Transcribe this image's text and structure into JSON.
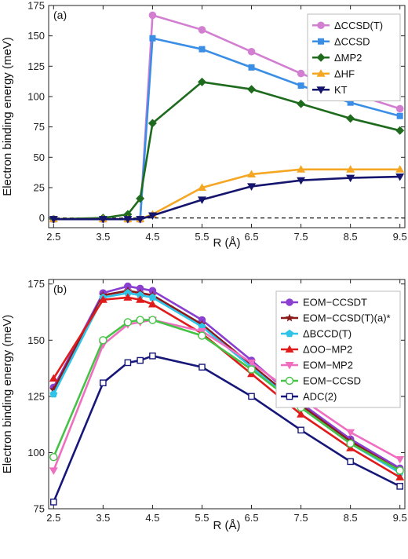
{
  "chart_data": [
    {
      "type": "line",
      "panel_label": "(a)",
      "xlabel": "R (Å)",
      "ylabel": "Electron binding energy (meV)",
      "xlim": [
        2.4,
        9.6
      ],
      "ylim": [
        -8,
        175
      ],
      "xticks": [
        2.5,
        3.5,
        4.5,
        5.5,
        6.5,
        7.5,
        8.5,
        9.5
      ],
      "yticks": [
        0,
        25,
        50,
        75,
        100,
        125,
        150,
        175
      ],
      "xtick_labels": [
        "2.5",
        "3.5",
        "4.5",
        "5.5",
        "6.5",
        "7.5",
        "8.5",
        "9.5"
      ],
      "ytick_labels": [
        "0",
        "25",
        "50",
        "75",
        "100",
        "125",
        "150",
        "175"
      ],
      "reference_line": {
        "y": 0,
        "style": "dashed"
      },
      "legend_position": "top-right",
      "series": [
        {
          "name": "ΔCCSD(T)",
          "color": "#d27fd2",
          "marker": "circle",
          "x": [
            2.5,
            3.5,
            4.0,
            4.25,
            4.5,
            5.5,
            6.5,
            7.5,
            8.5,
            9.5
          ],
          "y": [
            -1,
            -1,
            -1,
            -1,
            167,
            155,
            137,
            119,
            103,
            90
          ]
        },
        {
          "name": "ΔCCSD",
          "color": "#3a8ee6",
          "marker": "square",
          "x": [
            2.5,
            3.5,
            4.0,
            4.25,
            4.5,
            5.5,
            6.5,
            7.5,
            8.5,
            9.5
          ],
          "y": [
            -1,
            -1,
            -1,
            -1,
            148,
            139,
            124,
            109,
            95,
            84
          ]
        },
        {
          "name": "ΔMP2",
          "color": "#1e6b1e",
          "marker": "diamond",
          "x": [
            2.5,
            3.5,
            4.0,
            4.25,
            4.5,
            5.5,
            6.5,
            7.5,
            8.5,
            9.5
          ],
          "y": [
            -1,
            0,
            3,
            16,
            78,
            112,
            106,
            94,
            82,
            72
          ]
        },
        {
          "name": "ΔHF",
          "color": "#f5a623",
          "marker": "triangle-up",
          "x": [
            2.5,
            3.5,
            4.0,
            4.25,
            4.5,
            5.5,
            6.5,
            7.5,
            8.5,
            9.5
          ],
          "y": [
            -1,
            -1,
            -1,
            -1,
            3,
            25,
            36,
            40,
            40,
            40
          ]
        },
        {
          "name": "KT",
          "color": "#15156e",
          "marker": "triangle-down",
          "x": [
            2.5,
            3.5,
            4.0,
            4.25,
            4.5,
            5.5,
            6.5,
            7.5,
            8.5,
            9.5
          ],
          "y": [
            -1,
            -1,
            -1,
            -1,
            2,
            15,
            26,
            31,
            33,
            34
          ]
        }
      ]
    },
    {
      "type": "line",
      "panel_label": "(b)",
      "xlabel": "R (Å)",
      "ylabel": "Electron binding energy (meV)",
      "xlim": [
        2.4,
        9.6
      ],
      "ylim": [
        75,
        177
      ],
      "xticks": [
        2.5,
        3.5,
        4.5,
        5.5,
        6.5,
        7.5,
        8.5,
        9.5
      ],
      "yticks": [
        75,
        100,
        125,
        150,
        175
      ],
      "xtick_labels": [
        "2.5",
        "3.5",
        "4.5",
        "5.5",
        "6.5",
        "7.5",
        "8.5",
        "9.5"
      ],
      "ytick_labels": [
        "75",
        "100",
        "125",
        "150",
        "175"
      ],
      "legend_position": "top-right",
      "series": [
        {
          "name": "EOM−CCSDT",
          "color": "#8a3fd1",
          "marker": "circle",
          "x": [
            2.5,
            3.5,
            4.0,
            4.25,
            4.5,
            5.5,
            6.5,
            7.5,
            8.5,
            9.5
          ],
          "y": [
            129,
            171,
            174,
            173,
            172,
            159,
            141,
            122,
            106,
            93
          ]
        },
        {
          "name": "EOM−CCSD(T)(a)*",
          "color": "#8b1a1a",
          "marker": "star",
          "x": [
            2.5,
            3.5,
            4.0,
            4.25,
            4.5,
            5.5,
            6.5,
            7.5,
            8.5,
            9.5
          ],
          "y": [
            128,
            170,
            172,
            171,
            170,
            157,
            139,
            121,
            105,
            92
          ]
        },
        {
          "name": "ΔBCCD(T)",
          "color": "#2fc3e8",
          "marker": "pentagon",
          "x": [
            2.5,
            3.5,
            4.0,
            4.25,
            4.5,
            5.5,
            6.5,
            7.5,
            8.5,
            9.5
          ],
          "y": [
            126,
            169,
            171,
            170,
            169,
            156,
            138,
            120,
            104,
            91
          ]
        },
        {
          "name": "ΔOO−MP2",
          "color": "#e01b1b",
          "marker": "triangle-up",
          "x": [
            2.5,
            3.5,
            4.0,
            4.25,
            4.5,
            5.5,
            6.5,
            7.5,
            8.5,
            9.5
          ],
          "y": [
            133,
            168,
            169,
            168,
            166,
            153,
            135,
            117,
            102,
            89
          ]
        },
        {
          "name": "EOM−MP2",
          "color": "#f06ec0",
          "marker": "triangle-down",
          "x": [
            2.5,
            3.5,
            4.0,
            4.25,
            4.5,
            5.5,
            6.5,
            7.5,
            8.5,
            9.5
          ],
          "y": [
            92,
            148,
            157,
            158,
            159,
            154,
            140,
            124,
            109,
            97
          ]
        },
        {
          "name": "EOM−CCSD",
          "color": "#46c346",
          "marker": "circle-open",
          "x": [
            2.5,
            3.5,
            4.0,
            4.25,
            4.5,
            5.5,
            6.5,
            7.5,
            8.5,
            9.5
          ],
          "y": [
            98,
            150,
            158,
            159,
            159,
            152,
            137,
            120,
            104,
            92
          ]
        },
        {
          "name": "ADC(2)",
          "color": "#17177a",
          "marker": "square-open",
          "x": [
            2.5,
            3.5,
            4.0,
            4.25,
            4.5,
            5.5,
            6.5,
            7.5,
            8.5,
            9.5
          ],
          "y": [
            78,
            131,
            140,
            141,
            143,
            138,
            125,
            110,
            96,
            85
          ]
        }
      ]
    }
  ]
}
